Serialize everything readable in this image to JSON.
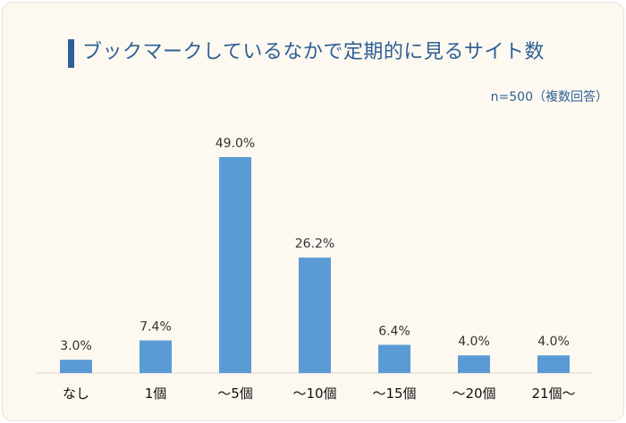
{
  "title": "ブックマークしているなかで定期的に見るサイト数",
  "note": "n=500（複数回答）",
  "chart_data": {
    "type": "bar",
    "title": "ブックマークしているなかで定期的に見るサイト数",
    "categories": [
      "なし",
      "1個",
      "～5個",
      "～10個",
      "～15個",
      "～20個",
      "21個～"
    ],
    "values": [
      3.0,
      7.4,
      49.0,
      26.2,
      6.4,
      4.0,
      4.0
    ],
    "labels": [
      "3.0%",
      "7.4%",
      "49.0%",
      "26.2%",
      "6.4%",
      "4.0%",
      "4.0%"
    ],
    "ylim": [
      0,
      50
    ],
    "grid": false,
    "legend": "none",
    "color": "#5b9bd5"
  }
}
